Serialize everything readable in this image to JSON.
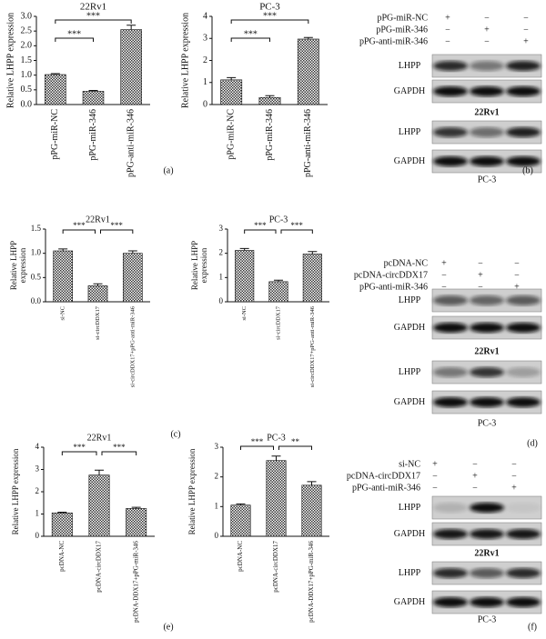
{
  "chart_data": [
    {
      "type": "bar",
      "title": "22Rv1",
      "y_label": [
        "Relative LHPP expression"
      ],
      "color": "#333333",
      "categories": [
        "pPG-miR-NC",
        "pPG-miR-346",
        "pPG-anti-miR-346"
      ],
      "values": [
        1.02,
        0.45,
        2.55
      ],
      "errors": [
        0.03,
        0.03,
        0.15
      ],
      "ylim": [
        0,
        3
      ],
      "yticks": [
        {
          "value": 0,
          "label": "0.0"
        },
        0.5,
        {
          "value": 1,
          "label": "1.0"
        },
        1.5,
        {
          "value": 2,
          "label": "2.0"
        },
        2.5,
        {
          "value": 3,
          "label": "3.0"
        }
      ],
      "annotations": [
        "***",
        "***"
      ]
    },
    {
      "type": "bar",
      "title": "PC-3",
      "y_label": [
        "Relative LHPP expression"
      ],
      "color": "#333333",
      "categories": [
        "pPG-miR-NC",
        "pPG-miR-346",
        "pPG-anti-miR-346"
      ],
      "values": [
        1.12,
        0.32,
        2.97
      ],
      "errors": [
        0.1,
        0.08,
        0.07
      ],
      "ylim": [
        0,
        4
      ],
      "yticks": [
        0,
        1,
        2,
        3,
        4
      ],
      "annotations": [
        "***",
        "***"
      ]
    },
    {
      "type": "bar",
      "title": "22Rv1",
      "y_label": [
        "Relative LHPP",
        "expression"
      ],
      "color": "#333333",
      "categories": [
        "si-NC",
        "si-circDDX17",
        "si-circDDX17+pPG-anti-miR-346"
      ],
      "values": [
        1.05,
        0.33,
        1.0
      ],
      "errors": [
        0.04,
        0.04,
        0.05
      ],
      "ylim": [
        0,
        1.5
      ],
      "yticks": [
        {
          "value": 0,
          "label": "0.0"
        },
        0.5,
        {
          "value": 1,
          "label": "1.0"
        },
        1.5
      ],
      "annotations": [
        "***",
        "***"
      ]
    },
    {
      "type": "bar",
      "title": "PC-3",
      "y_label": [
        "Relative LHPP",
        "expression"
      ],
      "color": "#333333",
      "categories": [
        "si-NC",
        "si-circDDX17",
        "si-circDDX17+pPG-anti-miR-346"
      ],
      "values": [
        2.12,
        0.83,
        1.97
      ],
      "errors": [
        0.08,
        0.06,
        0.1
      ],
      "ylim": [
        0,
        3
      ],
      "yticks": [
        0,
        1,
        2,
        3
      ],
      "annotations": [
        "***",
        "***"
      ]
    },
    {
      "type": "bar",
      "title": "22Rv1",
      "y_label": [
        "Relative LHPP expression"
      ],
      "color": "#333333",
      "categories": [
        "pcDNA-NC",
        "pcDNA-circDDX17",
        "pcDNA-DDX17+pPG-miR-346"
      ],
      "values": [
        1.05,
        2.75,
        1.25
      ],
      "errors": [
        0.03,
        0.22,
        0.05
      ],
      "ylim": [
        0,
        4
      ],
      "yticks": [
        0,
        1,
        2,
        3,
        4
      ],
      "annotations": [
        "***",
        "***"
      ]
    },
    {
      "type": "bar",
      "title": "PC-3",
      "y_label": [
        "Relative LHPP expression"
      ],
      "color": "#333333",
      "categories": [
        "pcDNA-NC",
        "pcDNA-circDDX17",
        "pcDNA-DDX17+pPG-miR-346"
      ],
      "values": [
        1.05,
        2.55,
        1.72
      ],
      "errors": [
        0.04,
        0.15,
        0.12
      ],
      "ylim": [
        0,
        3
      ],
      "yticks": [
        0,
        1,
        2,
        3
      ],
      "annotations": [
        "***",
        "**"
      ]
    }
  ],
  "blot_panels": [
    {
      "conditions": [
        {
          "name": "pPG-miR-NC",
          "signs": [
            "+",
            "−",
            "−"
          ]
        },
        {
          "name": "pPG-miR-346",
          "signs": [
            "−",
            "+",
            "−"
          ]
        },
        {
          "name": "pPG-anti-miR-346",
          "signs": [
            "−",
            "−",
            "+"
          ]
        }
      ],
      "blots": [
        {
          "cell_line": "22Rv1",
          "bands": [
            "LHPP",
            "GAPDH"
          ]
        },
        {
          "cell_line": "PC-3",
          "bands": [
            "LHPP",
            "GAPDH"
          ]
        }
      ]
    },
    {
      "conditions": [
        {
          "name": "pcDNA-NC",
          "signs": [
            "+",
            "−",
            "−"
          ]
        },
        {
          "name": "pcDNA-circDDX17",
          "signs": [
            "−",
            "+",
            "−"
          ]
        },
        {
          "name": "pPG-anti-miR-346",
          "signs": [
            "−",
            "−",
            "+"
          ]
        }
      ],
      "blots": [
        {
          "cell_line": "22Rv1",
          "bands": [
            "LHPP",
            "GAPDH"
          ]
        },
        {
          "cell_line": "PC-3",
          "bands": [
            "LHPP",
            "GAPDH"
          ]
        }
      ]
    },
    {
      "conditions": [
        {
          "name": "si-NC",
          "signs": [
            "+",
            "−",
            "−"
          ]
        },
        {
          "name": "pcDNA-circDDX17",
          "signs": [
            "−",
            "+",
            "−"
          ]
        },
        {
          "name": "pPG-anti-miR-346",
          "signs": [
            "−",
            "−",
            "+"
          ]
        }
      ],
      "blots": [
        {
          "cell_line": "22Rv1",
          "bands": [
            "LHPP",
            "GAPDH"
          ]
        },
        {
          "cell_line": "PC-3",
          "bands": [
            "LHPP",
            "GAPDH"
          ]
        }
      ]
    }
  ],
  "panel_labels": [
    "(a)",
    "(b)",
    "(c)",
    "(d)",
    "(e)",
    "(f)"
  ]
}
